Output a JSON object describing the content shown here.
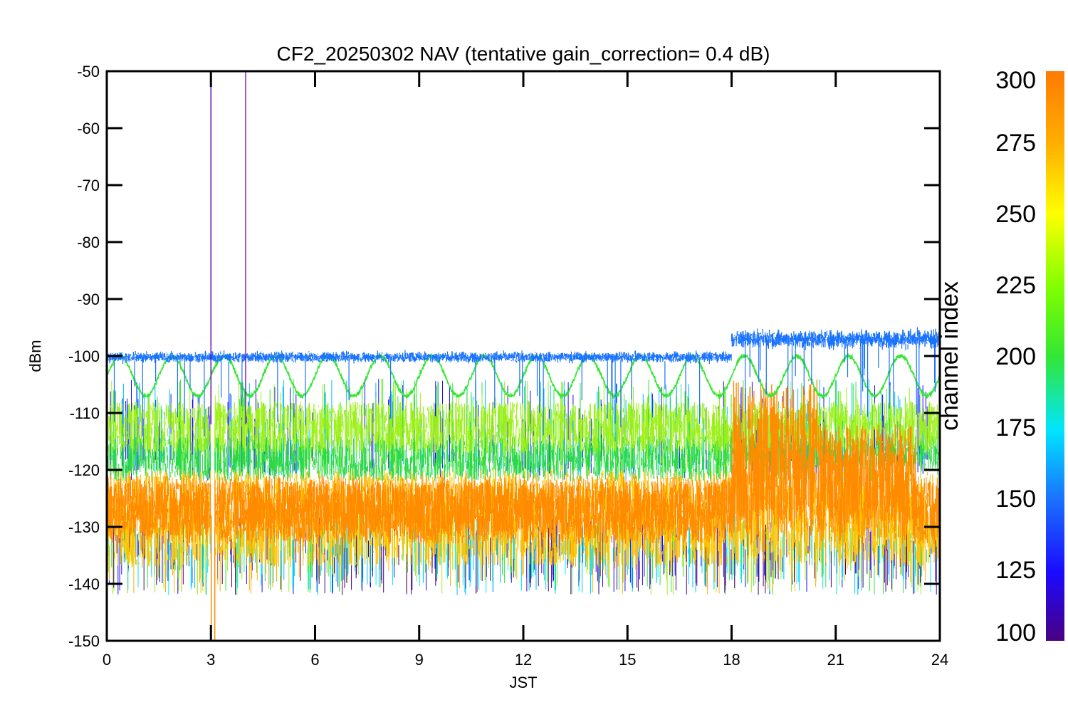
{
  "chart_data": {
    "type": "line",
    "title": "CF2_20250302 NAV (tentative gain_correction=  0.4 dB)",
    "xlabel": "JST",
    "ylabel": "dBm",
    "xlim": [
      0,
      24
    ],
    "ylim": [
      -150,
      -50
    ],
    "x_ticks": [
      "0",
      "3",
      "6",
      "9",
      "12",
      "15",
      "18",
      "21",
      "24"
    ],
    "y_ticks": [
      "-50",
      "-60",
      "-70",
      "-80",
      "-90",
      "-100",
      "-110",
      "-120",
      "-130",
      "-140",
      "-150"
    ],
    "grid": false,
    "colorbar": {
      "label": "channel index",
      "range": [
        100,
        300
      ],
      "ticks": [
        "300",
        "275",
        "250",
        "225",
        "200",
        "175",
        "150",
        "125",
        "100"
      ]
    },
    "bands": [
      {
        "channel": 152,
        "color": "#1a73ff",
        "center_before_18": -100.2,
        "center_after_18": -97.0,
        "spread": 1.0
      },
      {
        "channel": 232,
        "color": "#33e633",
        "oscillation_center": -103.5,
        "oscillation_amplitude": 3.5,
        "oscillation_period_hours": 1.5
      },
      {
        "channel": 262,
        "color": "#9ef01a",
        "min": -117,
        "max": -108
      },
      {
        "channel": 235,
        "color": "#2ad84a",
        "min": -122,
        "max": -114
      },
      {
        "channel": 282,
        "color": "#ffc400",
        "min": -137,
        "max": -120
      },
      {
        "channel": 295,
        "color": "#ff8c00",
        "min": -135,
        "max": -121,
        "upper_after_18": -110
      }
    ],
    "annotations": [
      {
        "x": 3.0,
        "type": "spike",
        "color": "#5a00aa",
        "y_top": -52
      },
      {
        "x": 4.0,
        "type": "spike",
        "color": "#7a10c0",
        "y_top": -50
      },
      {
        "x": 3.05,
        "type": "gap"
      }
    ]
  }
}
